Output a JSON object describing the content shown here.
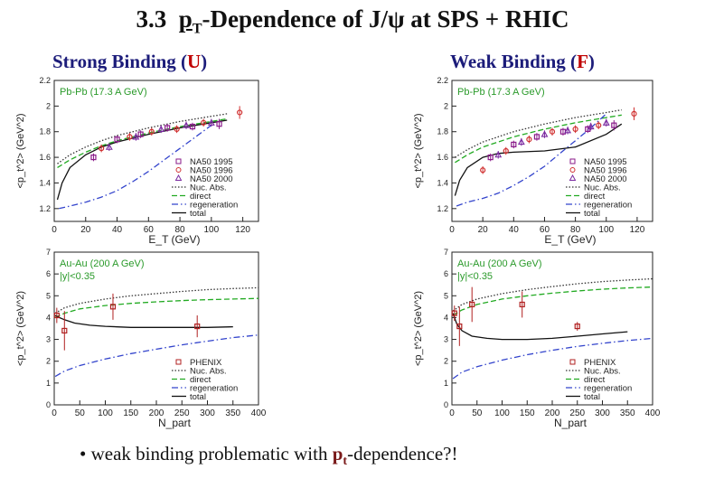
{
  "slide": {
    "title_number": "3.3",
    "title_main": "p",
    "title_sub": "T",
    "title_rest": "-Dependence of J/ψ at SPS + RHIC",
    "left_heading": "Strong Binding (",
    "left_letter": "U",
    "left_close": ")",
    "right_heading": "Weak Binding (",
    "right_letter": "F",
    "right_close": ")",
    "bullet_prefix": "• weak binding problematic with ",
    "bullet_pt": "p",
    "bullet_sub": "t",
    "bullet_suffix": "-dependence?!"
  },
  "chart_data": [
    {
      "id": "sps-strong",
      "type": "line",
      "title": "Pb-Pb (17.3 A GeV)",
      "xlabel": "E_T (GeV)",
      "ylabel": "<p_t^2> (GeV^2)",
      "xlim": [
        0,
        130
      ],
      "ylim": [
        1.1,
        2.2
      ],
      "xticks": [
        0,
        20,
        40,
        60,
        80,
        100,
        120
      ],
      "yticks": [
        1.2,
        1.4,
        1.6,
        1.8,
        2.0,
        2.2
      ],
      "legend": [
        "NA50 1995",
        "NA50 1996",
        "NA50 2000",
        "Nuc. Abs.",
        "direct",
        "regeneration",
        "total"
      ],
      "series": [
        {
          "name": "Nuc. Abs.",
          "style": "dotted",
          "color": "#333333",
          "x": [
            2,
            10,
            20,
            30,
            40,
            60,
            80,
            100,
            110
          ],
          "y": [
            1.55,
            1.62,
            1.68,
            1.73,
            1.77,
            1.83,
            1.88,
            1.92,
            1.94
          ]
        },
        {
          "name": "direct",
          "style": "dashed",
          "color": "#22aa22",
          "x": [
            2,
            10,
            20,
            30,
            40,
            60,
            80,
            100,
            110
          ],
          "y": [
            1.52,
            1.58,
            1.64,
            1.69,
            1.73,
            1.79,
            1.84,
            1.88,
            1.9
          ]
        },
        {
          "name": "regeneration",
          "style": "dashdot",
          "color": "#3344cc",
          "x": [
            3,
            10,
            20,
            30,
            40,
            50,
            60,
            70,
            80,
            90,
            100
          ],
          "y": [
            1.2,
            1.22,
            1.25,
            1.29,
            1.34,
            1.41,
            1.49,
            1.58,
            1.67,
            1.76,
            1.85
          ]
        },
        {
          "name": "total",
          "style": "solid",
          "color": "#111111",
          "x": [
            2,
            5,
            10,
            20,
            30,
            40,
            60,
            80,
            100,
            110
          ],
          "y": [
            1.27,
            1.4,
            1.52,
            1.62,
            1.68,
            1.72,
            1.78,
            1.83,
            1.87,
            1.89
          ]
        }
      ],
      "points": [
        {
          "name": "NA50 1995",
          "marker": "square",
          "color": "#8a1a8a",
          "x": [
            25,
            40,
            55,
            72,
            88,
            105
          ],
          "y": [
            1.6,
            1.74,
            1.78,
            1.83,
            1.84,
            1.86
          ],
          "err": [
            0.03,
            0.03,
            0.03,
            0.03,
            0.03,
            0.04
          ]
        },
        {
          "name": "NA50 1996",
          "marker": "circle",
          "color": "#d03030",
          "x": [
            30,
            48,
            62,
            78,
            95,
            118
          ],
          "y": [
            1.67,
            1.76,
            1.8,
            1.82,
            1.87,
            1.95
          ],
          "err": [
            0.03,
            0.03,
            0.03,
            0.03,
            0.03,
            0.05
          ]
        },
        {
          "name": "NA50 2000",
          "marker": "triangle",
          "color": "#7a2aa0",
          "x": [
            35,
            52,
            68,
            84,
            100
          ],
          "y": [
            1.68,
            1.76,
            1.82,
            1.85,
            1.87
          ],
          "err": [
            0.03,
            0.03,
            0.03,
            0.03,
            0.03
          ]
        }
      ]
    },
    {
      "id": "sps-weak",
      "type": "line",
      "title": "Pb-Pb (17.3 A GeV)",
      "xlabel": "E_T (GeV)",
      "ylabel": "<p_t^2> (GeV^2)",
      "xlim": [
        0,
        130
      ],
      "ylim": [
        1.1,
        2.2
      ],
      "xticks": [
        0,
        20,
        40,
        60,
        80,
        100,
        120
      ],
      "yticks": [
        1.2,
        1.4,
        1.6,
        1.8,
        2.0,
        2.2
      ],
      "legend": [
        "NA50 1995",
        "NA50 1996",
        "NA50 2000",
        "Nuc. Abs.",
        "direct",
        "regeneration",
        "total"
      ],
      "series": [
        {
          "name": "Nuc. Abs.",
          "style": "dotted",
          "color": "#333333",
          "x": [
            2,
            10,
            20,
            30,
            40,
            60,
            80,
            100,
            110
          ],
          "y": [
            1.6,
            1.66,
            1.72,
            1.76,
            1.8,
            1.86,
            1.91,
            1.95,
            1.97
          ]
        },
        {
          "name": "direct",
          "style": "dashed",
          "color": "#22aa22",
          "x": [
            2,
            10,
            20,
            30,
            40,
            60,
            80,
            100,
            110
          ],
          "y": [
            1.56,
            1.62,
            1.68,
            1.72,
            1.76,
            1.82,
            1.87,
            1.91,
            1.93
          ]
        },
        {
          "name": "regeneration",
          "style": "dashdot",
          "color": "#3344cc",
          "x": [
            3,
            10,
            20,
            30,
            40,
            50,
            60,
            70,
            80,
            90,
            100
          ],
          "y": [
            1.22,
            1.25,
            1.28,
            1.32,
            1.38,
            1.45,
            1.53,
            1.63,
            1.73,
            1.83,
            1.94
          ]
        },
        {
          "name": "total",
          "style": "solid",
          "color": "#111111",
          "x": [
            2,
            5,
            10,
            20,
            30,
            40,
            60,
            80,
            100,
            110
          ],
          "y": [
            1.3,
            1.42,
            1.52,
            1.6,
            1.63,
            1.64,
            1.65,
            1.68,
            1.78,
            1.86
          ]
        }
      ],
      "points": [
        {
          "name": "NA50 1995",
          "marker": "square",
          "color": "#8a1a8a",
          "x": [
            25,
            40,
            55,
            72,
            88,
            105
          ],
          "y": [
            1.6,
            1.7,
            1.76,
            1.8,
            1.82,
            1.85
          ],
          "err": [
            0.03,
            0.03,
            0.03,
            0.03,
            0.03,
            0.04
          ]
        },
        {
          "name": "NA50 1996",
          "marker": "circle",
          "color": "#d03030",
          "x": [
            20,
            35,
            50,
            65,
            80,
            95,
            118
          ],
          "y": [
            1.5,
            1.65,
            1.74,
            1.8,
            1.82,
            1.85,
            1.94
          ],
          "err": [
            0.03,
            0.03,
            0.03,
            0.03,
            0.03,
            0.03,
            0.05
          ]
        },
        {
          "name": "NA50 2000",
          "marker": "triangle",
          "color": "#7a2aa0",
          "x": [
            30,
            45,
            60,
            75,
            90,
            100
          ],
          "y": [
            1.62,
            1.72,
            1.78,
            1.81,
            1.84,
            1.87
          ],
          "err": [
            0.03,
            0.03,
            0.03,
            0.03,
            0.03,
            0.03
          ]
        }
      ]
    },
    {
      "id": "rhic-strong",
      "type": "line",
      "title": "Au-Au (200 A GeV)",
      "annotation": "|y|<0.35",
      "xlabel": "N_part",
      "ylabel": "<p_t^2> (GeV^2)",
      "xlim": [
        0,
        400
      ],
      "ylim": [
        0,
        7
      ],
      "xticks": [
        0,
        50,
        100,
        150,
        200,
        250,
        300,
        350,
        400
      ],
      "yticks": [
        0,
        1,
        2,
        3,
        4,
        5,
        6,
        7
      ],
      "legend": [
        "PHENIX",
        "Nuc. Abs.",
        "direct",
        "regeneration",
        "total"
      ],
      "series": [
        {
          "name": "Nuc. Abs.",
          "style": "dotted",
          "color": "#333333",
          "x": [
            2,
            20,
            50,
            100,
            150,
            200,
            250,
            300,
            350,
            400
          ],
          "y": [
            4.2,
            4.45,
            4.65,
            4.85,
            5.0,
            5.1,
            5.2,
            5.28,
            5.33,
            5.37
          ]
        },
        {
          "name": "direct",
          "style": "dashed",
          "color": "#22aa22",
          "x": [
            2,
            20,
            50,
            100,
            150,
            200,
            250,
            300,
            350,
            400
          ],
          "y": [
            4.0,
            4.2,
            4.4,
            4.55,
            4.65,
            4.72,
            4.78,
            4.82,
            4.85,
            4.88
          ]
        },
        {
          "name": "regeneration",
          "style": "dashdot",
          "color": "#3344cc",
          "x": [
            2,
            20,
            50,
            100,
            150,
            200,
            250,
            300,
            350,
            400
          ],
          "y": [
            1.3,
            1.55,
            1.8,
            2.1,
            2.35,
            2.55,
            2.75,
            2.92,
            3.08,
            3.2
          ]
        },
        {
          "name": "total",
          "style": "solid",
          "color": "#111111",
          "x": [
            2,
            10,
            20,
            40,
            70,
            100,
            150,
            200,
            250,
            300,
            350
          ],
          "y": [
            4.1,
            4.0,
            3.9,
            3.75,
            3.65,
            3.6,
            3.55,
            3.55,
            3.55,
            3.55,
            3.58
          ]
        }
      ],
      "points": [
        {
          "name": "PHENIX",
          "marker": "square",
          "color": "#b02020",
          "x": [
            5,
            20,
            115,
            280
          ],
          "y": [
            4.1,
            3.4,
            4.5,
            3.6
          ],
          "err": [
            0.35,
            0.9,
            0.6,
            0.5
          ]
        }
      ]
    },
    {
      "id": "rhic-weak",
      "type": "line",
      "title": "Au-Au (200 A GeV)",
      "annotation": "|y|<0.35",
      "xlabel": "N_part",
      "ylabel": "<p_t^2> (GeV^2)",
      "xlim": [
        0,
        400
      ],
      "ylim": [
        0,
        7
      ],
      "xticks": [
        0,
        50,
        100,
        150,
        200,
        250,
        300,
        350,
        400
      ],
      "yticks": [
        0,
        1,
        2,
        3,
        4,
        5,
        6,
        7
      ],
      "legend": [
        "PHENIX",
        "Nuc. Abs.",
        "direct",
        "regeneration",
        "total"
      ],
      "series": [
        {
          "name": "Nuc. Abs.",
          "style": "dotted",
          "color": "#333333",
          "x": [
            2,
            20,
            50,
            100,
            150,
            200,
            250,
            300,
            350,
            400
          ],
          "y": [
            4.3,
            4.6,
            4.85,
            5.1,
            5.28,
            5.42,
            5.55,
            5.65,
            5.72,
            5.78
          ]
        },
        {
          "name": "direct",
          "style": "dashed",
          "color": "#22aa22",
          "x": [
            2,
            20,
            50,
            100,
            150,
            200,
            250,
            300,
            350,
            400
          ],
          "y": [
            4.1,
            4.35,
            4.6,
            4.85,
            5.0,
            5.12,
            5.22,
            5.3,
            5.36,
            5.4
          ]
        },
        {
          "name": "regeneration",
          "style": "dashdot",
          "color": "#3344cc",
          "x": [
            2,
            20,
            50,
            100,
            150,
            200,
            250,
            300,
            350,
            400
          ],
          "y": [
            1.2,
            1.5,
            1.75,
            2.05,
            2.3,
            2.5,
            2.68,
            2.82,
            2.95,
            3.05
          ]
        },
        {
          "name": "total",
          "style": "solid",
          "color": "#111111",
          "x": [
            2,
            5,
            10,
            20,
            40,
            70,
            100,
            150,
            200,
            250,
            300,
            350
          ],
          "y": [
            4.2,
            4.0,
            3.7,
            3.4,
            3.15,
            3.05,
            3.0,
            3.0,
            3.05,
            3.15,
            3.25,
            3.35
          ]
        }
      ],
      "points": [
        {
          "name": "PHENIX",
          "marker": "square",
          "color": "#b02020",
          "x": [
            5,
            15,
            40,
            140,
            250
          ],
          "y": [
            4.2,
            3.6,
            4.6,
            4.6,
            3.6
          ],
          "err": [
            0.35,
            0.9,
            0.8,
            0.6,
            0.2
          ]
        }
      ]
    }
  ]
}
